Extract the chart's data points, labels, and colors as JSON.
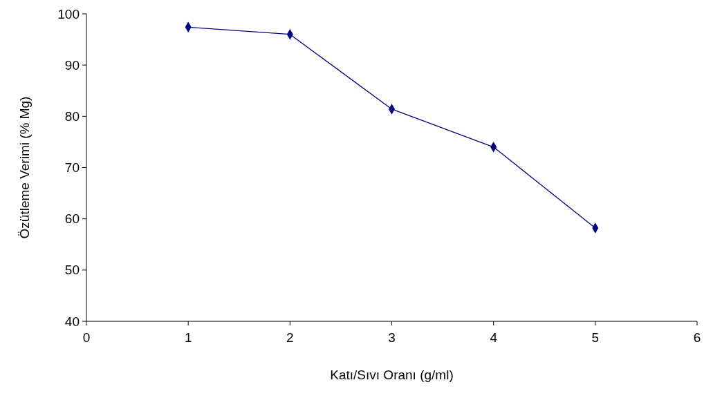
{
  "chart_data": {
    "type": "line",
    "xlabel": "Katı/Sıvı Oranı (g/ml)",
    "ylabel": "Özütleme Verimi (% Mg)",
    "x": [
      1,
      2,
      3,
      4,
      5
    ],
    "series": [
      {
        "color": "#000080",
        "values": [
          97.4,
          96,
          81.4,
          74,
          58.2
        ]
      }
    ],
    "xlim": [
      0,
      6
    ],
    "xticks": [
      0,
      1,
      2,
      3,
      4,
      5,
      6
    ],
    "ylim": [
      40,
      100
    ],
    "yticks": [
      40,
      50,
      60,
      70,
      80,
      90,
      100
    ],
    "grid": false,
    "marker": "diamond",
    "line_style": "solid"
  }
}
